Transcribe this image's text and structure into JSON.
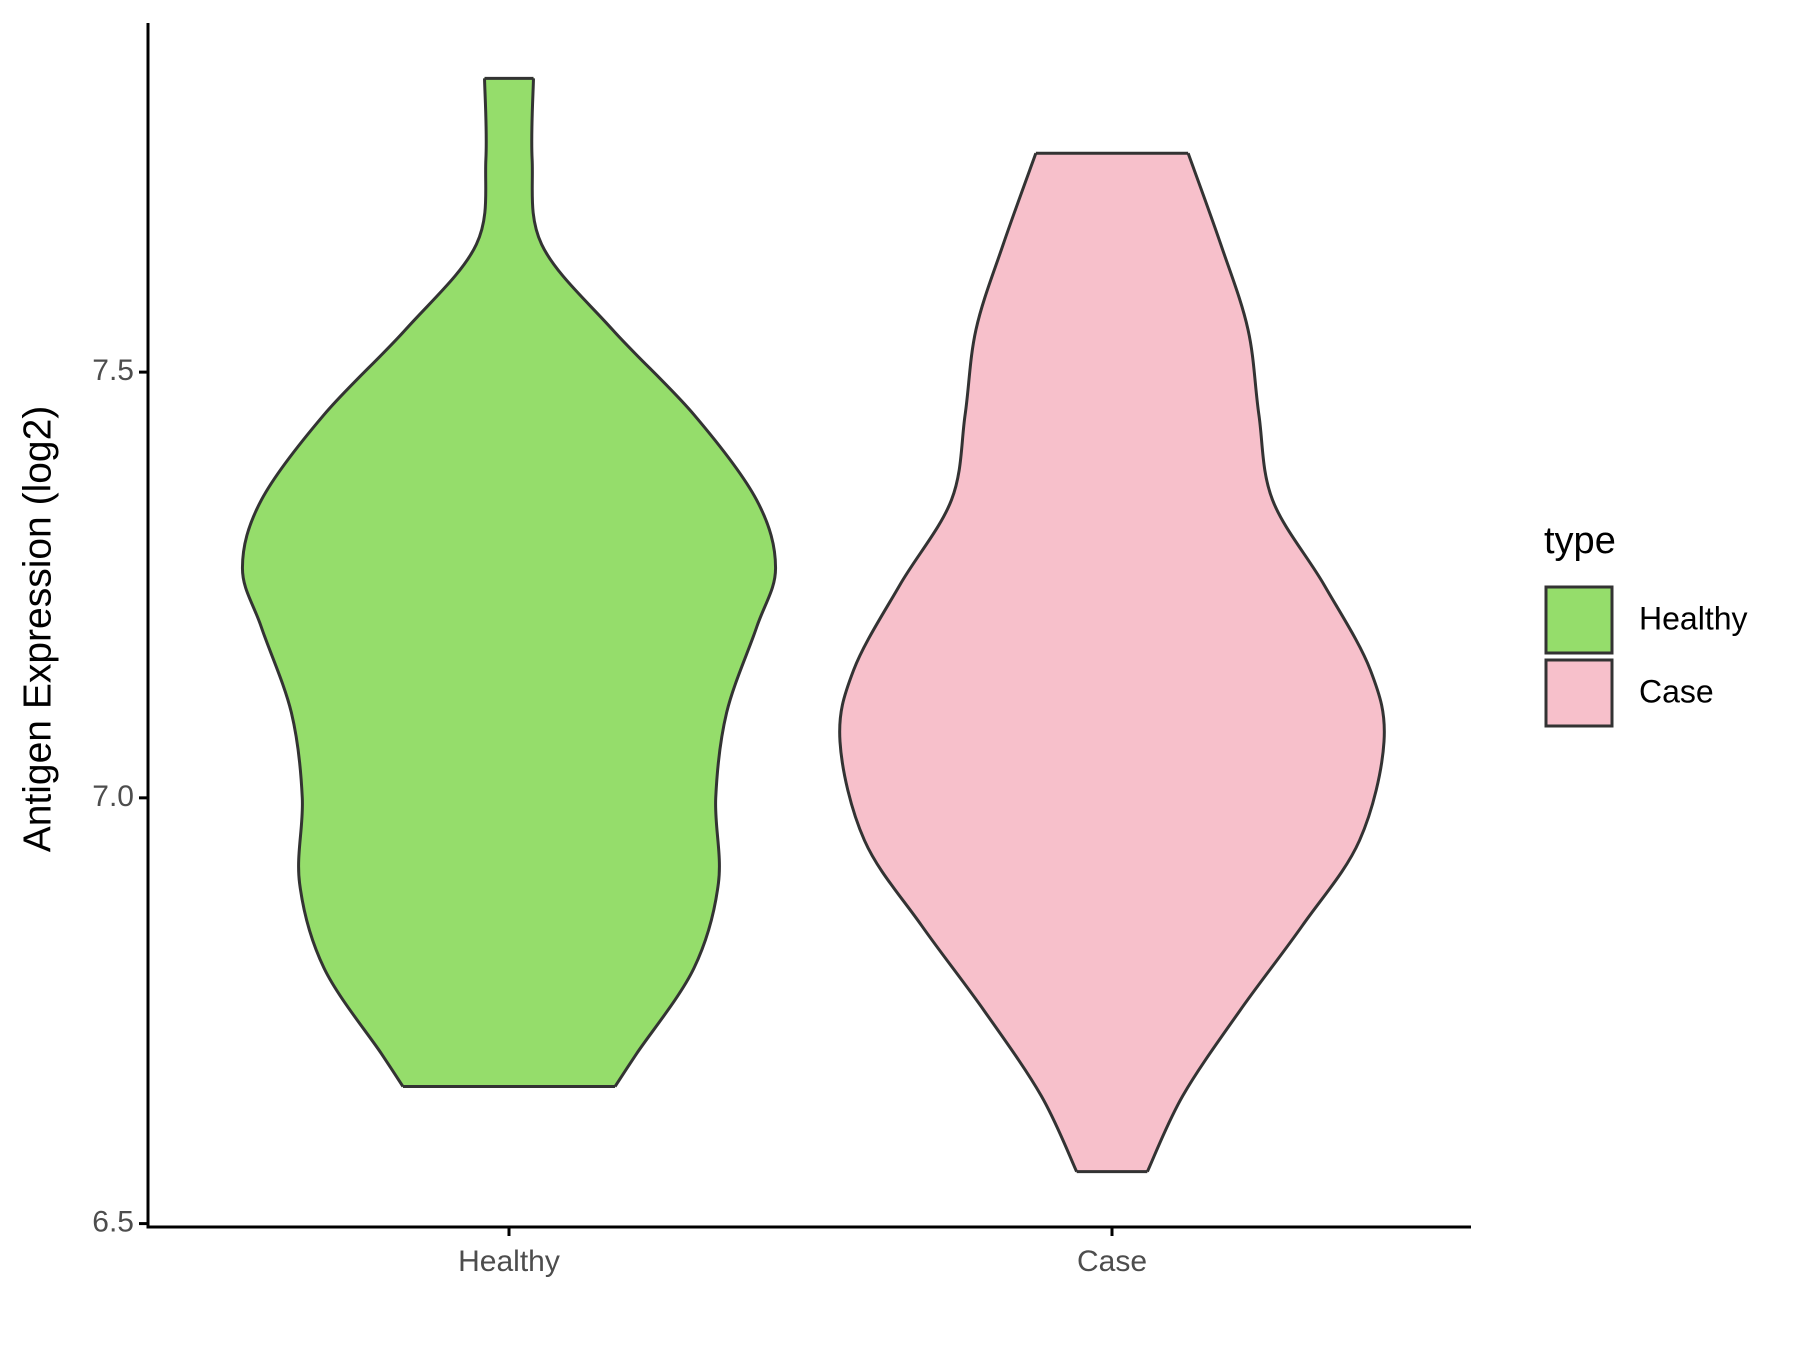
{
  "chart_data": {
    "type": "violin",
    "y_label": "Antigen Expression (log2)",
    "categories": [
      "Healthy",
      "Case"
    ],
    "ylim": [
      6.496,
      7.91
    ],
    "yticks": [
      {
        "value": 6.5,
        "label": "6.5"
      },
      {
        "value": 7.0,
        "label": "7.0"
      },
      {
        "value": 7.5,
        "label": "7.5"
      }
    ],
    "legend_title": "type",
    "legend_position": "right",
    "series": [
      {
        "name": "Healthy",
        "color": "#95dd6b",
        "y": [
          7.845,
          7.75,
          7.65,
          7.55,
          7.45,
          7.35,
          7.27,
          7.2,
          7.1,
          7.0,
          6.9,
          6.8,
          6.7,
          6.661
        ],
        "density": [
          0.09,
          0.085,
          0.12,
          0.38,
          0.68,
          0.91,
          0.98,
          0.91,
          0.8,
          0.76,
          0.77,
          0.68,
          0.47,
          0.39
        ]
      },
      {
        "name": "Case",
        "color": "#f7c0cb",
        "y": [
          7.757,
          7.65,
          7.55,
          7.45,
          7.35,
          7.25,
          7.15,
          7.066,
          6.95,
          6.85,
          6.75,
          6.65,
          6.561
        ],
        "density": [
          0.28,
          0.4,
          0.5,
          0.54,
          0.59,
          0.78,
          0.95,
          1,
          0.91,
          0.7,
          0.47,
          0.26,
          0.13
        ]
      }
    ]
  }
}
